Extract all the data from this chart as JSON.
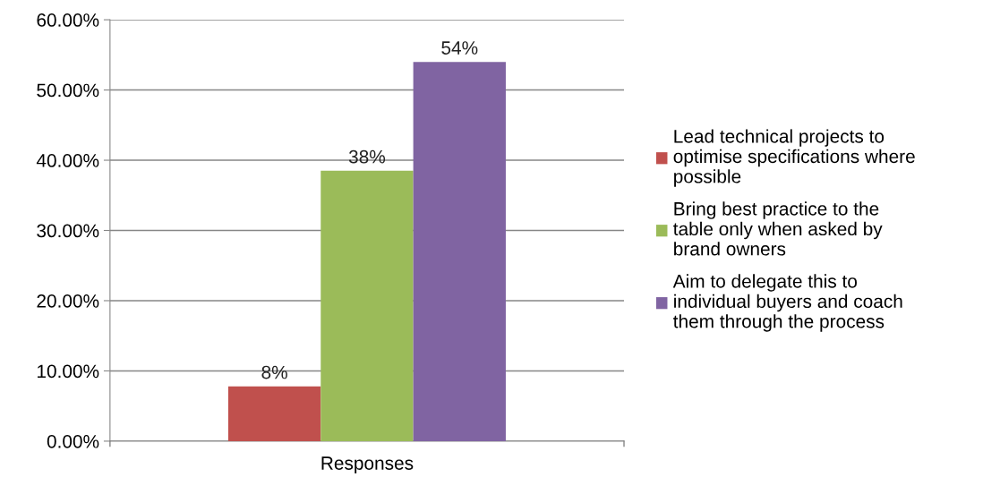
{
  "chart_data": {
    "type": "bar",
    "categories": [
      "Responses"
    ],
    "xlabel": null,
    "series": [
      {
        "name": "Lead technical projects to optimise specifications where possible",
        "color": "#c0504d",
        "values": [
          7.8
        ],
        "value_labels": [
          "8%"
        ]
      },
      {
        "name": "Bring best practice to the table only when asked by brand owners",
        "color": "#9bbb59",
        "values": [
          38.5
        ],
        "value_labels": [
          "38%"
        ]
      },
      {
        "name": "Aim to delegate this to individual buyers and coach them through the process",
        "color": "#8064a2",
        "values": [
          54
        ],
        "value_labels": [
          "54%"
        ]
      }
    ],
    "ylim": [
      0,
      60
    ],
    "yticks": [
      {
        "value": 0,
        "label": "0.00%"
      },
      {
        "value": 10,
        "label": "10.00%"
      },
      {
        "value": 20,
        "label": "20.00%"
      },
      {
        "value": 30,
        "label": "30.00%"
      },
      {
        "value": 40,
        "label": "40.00%"
      },
      {
        "value": 50,
        "label": "50.00%"
      },
      {
        "value": 60,
        "label": "60.00%"
      }
    ],
    "grid": "y",
    "legend": "right"
  }
}
